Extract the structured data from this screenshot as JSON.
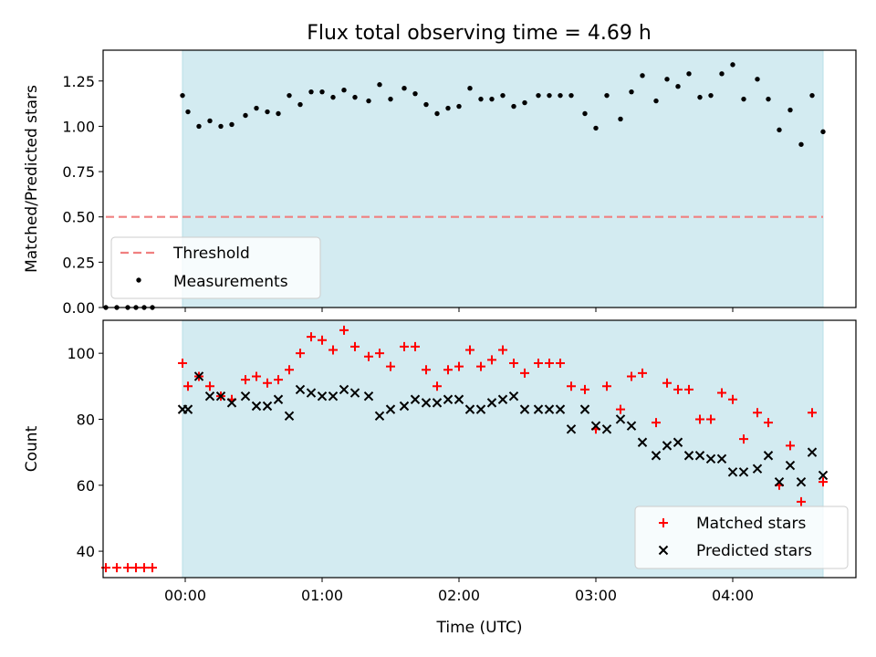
{
  "title": "Flux total observing time = 4.69 h",
  "colors": {
    "shade": "#d3ebf1",
    "threshold": "#f08080",
    "measurements": "#000000",
    "matched": "#ff0000",
    "predicted": "#000000"
  },
  "chart_data": [
    {
      "type": "scatter",
      "ylabel": "Matched/Predicted stars",
      "xlabel": "",
      "xlim": [
        -0.6,
        4.9
      ],
      "ylim": [
        0,
        1.42
      ],
      "yticks": [
        0.0,
        0.25,
        0.5,
        0.75,
        1.0,
        1.25
      ],
      "ytick_labels": [
        "0.00",
        "0.25",
        "0.50",
        "0.75",
        "1.00",
        "1.25"
      ],
      "shaded_span": [
        -0.02,
        4.66
      ],
      "legend": {
        "placement": "lower-left",
        "entries": [
          "Threshold",
          "Measurements"
        ]
      },
      "threshold": {
        "name": "Threshold",
        "value": 0.5,
        "x_range": [
          -0.58,
          4.66
        ]
      },
      "series": [
        {
          "name": "Measurements",
          "x": [
            -0.58,
            -0.5,
            -0.42,
            -0.36,
            -0.3,
            -0.24,
            -0.02,
            0.02,
            0.1,
            0.18,
            0.26,
            0.34,
            0.44,
            0.52,
            0.6,
            0.68,
            0.76,
            0.84,
            0.92,
            1.0,
            1.08,
            1.16,
            1.24,
            1.34,
            1.42,
            1.5,
            1.6,
            1.68,
            1.76,
            1.84,
            1.92,
            2.0,
            2.08,
            2.16,
            2.24,
            2.32,
            2.4,
            2.48,
            2.58,
            2.66,
            2.74,
            2.82,
            2.92,
            3.0,
            3.08,
            3.18,
            3.26,
            3.34,
            3.44,
            3.52,
            3.6,
            3.68,
            3.76,
            3.84,
            3.92,
            4.0,
            4.08,
            4.18,
            4.26,
            4.34,
            4.42,
            4.5,
            4.58,
            4.66
          ],
          "y": [
            0.0,
            0.0,
            0.0,
            0.0,
            0.0,
            0.0,
            1.17,
            1.08,
            1.0,
            1.03,
            1.0,
            1.01,
            1.06,
            1.1,
            1.08,
            1.07,
            1.17,
            1.12,
            1.19,
            1.19,
            1.16,
            1.2,
            1.16,
            1.14,
            1.23,
            1.15,
            1.21,
            1.18,
            1.12,
            1.07,
            1.1,
            1.11,
            1.21,
            1.15,
            1.15,
            1.17,
            1.11,
            1.13,
            1.17,
            1.17,
            1.17,
            1.17,
            1.07,
            0.99,
            1.17,
            1.04,
            1.19,
            1.28,
            1.14,
            1.26,
            1.22,
            1.29,
            1.16,
            1.17,
            1.29,
            1.34,
            1.15,
            1.26,
            1.15,
            0.98,
            1.09,
            0.9,
            1.17,
            0.97
          ]
        }
      ]
    },
    {
      "type": "scatter",
      "ylabel": "Count",
      "xlabel": "Time (UTC)",
      "xlim": [
        -0.6,
        4.9
      ],
      "ylim": [
        32,
        110
      ],
      "yticks": [
        40,
        60,
        80,
        100
      ],
      "ytick_labels": [
        "40",
        "60",
        "80",
        "100"
      ],
      "xticks": [
        0,
        1,
        2,
        3,
        4
      ],
      "xtick_labels": [
        "00:00",
        "01:00",
        "02:00",
        "03:00",
        "04:00"
      ],
      "shaded_span": [
        -0.02,
        4.66
      ],
      "legend": {
        "placement": "lower-right",
        "entries": [
          "Matched stars",
          "Predicted stars"
        ]
      },
      "series": [
        {
          "name": "Matched stars",
          "marker": "plus",
          "x": [
            -0.58,
            -0.5,
            -0.42,
            -0.36,
            -0.3,
            -0.24,
            -0.02,
            0.02,
            0.1,
            0.18,
            0.26,
            0.34,
            0.44,
            0.52,
            0.6,
            0.68,
            0.76,
            0.84,
            0.92,
            1.0,
            1.08,
            1.16,
            1.24,
            1.34,
            1.42,
            1.5,
            1.6,
            1.68,
            1.76,
            1.84,
            1.92,
            2.0,
            2.08,
            2.16,
            2.24,
            2.32,
            2.4,
            2.48,
            2.58,
            2.66,
            2.74,
            2.82,
            2.92,
            3.0,
            3.08,
            3.18,
            3.26,
            3.34,
            3.44,
            3.52,
            3.6,
            3.68,
            3.76,
            3.84,
            3.92,
            4.0,
            4.08,
            4.18,
            4.26,
            4.34,
            4.42,
            4.5,
            4.58,
            4.66
          ],
          "y": [
            35,
            35,
            35,
            35,
            35,
            35,
            97,
            90,
            93,
            90,
            87,
            86,
            92,
            93,
            91,
            92,
            95,
            100,
            105,
            104,
            101,
            107,
            102,
            99,
            100,
            96,
            102,
            102,
            95,
            90,
            95,
            96,
            101,
            96,
            98,
            101,
            97,
            94,
            97,
            97,
            97,
            90,
            89,
            77,
            90,
            83,
            93,
            94,
            79,
            91,
            89,
            89,
            80,
            80,
            88,
            86,
            74,
            82,
            79,
            60,
            72,
            55,
            82,
            61
          ]
        },
        {
          "name": "Predicted stars",
          "marker": "x",
          "x": [
            -0.02,
            0.02,
            0.1,
            0.18,
            0.26,
            0.34,
            0.44,
            0.52,
            0.6,
            0.68,
            0.76,
            0.84,
            0.92,
            1.0,
            1.08,
            1.16,
            1.24,
            1.34,
            1.42,
            1.5,
            1.6,
            1.68,
            1.76,
            1.84,
            1.92,
            2.0,
            2.08,
            2.16,
            2.24,
            2.32,
            2.4,
            2.48,
            2.58,
            2.66,
            2.74,
            2.82,
            2.92,
            3.0,
            3.08,
            3.18,
            3.26,
            3.34,
            3.44,
            3.52,
            3.6,
            3.68,
            3.76,
            3.84,
            3.92,
            4.0,
            4.08,
            4.18,
            4.26,
            4.34,
            4.42,
            4.5,
            4.58,
            4.66
          ],
          "y": [
            83,
            83,
            93,
            87,
            87,
            85,
            87,
            84,
            84,
            86,
            81,
            89,
            88,
            87,
            87,
            89,
            88,
            87,
            81,
            83,
            84,
            86,
            85,
            85,
            86,
            86,
            83,
            83,
            85,
            86,
            87,
            83,
            83,
            83,
            83,
            77,
            83,
            78,
            77,
            80,
            78,
            73,
            69,
            72,
            73,
            69,
            69,
            68,
            68,
            64,
            64,
            65,
            69,
            61,
            66,
            61,
            70,
            63
          ]
        }
      ]
    }
  ]
}
